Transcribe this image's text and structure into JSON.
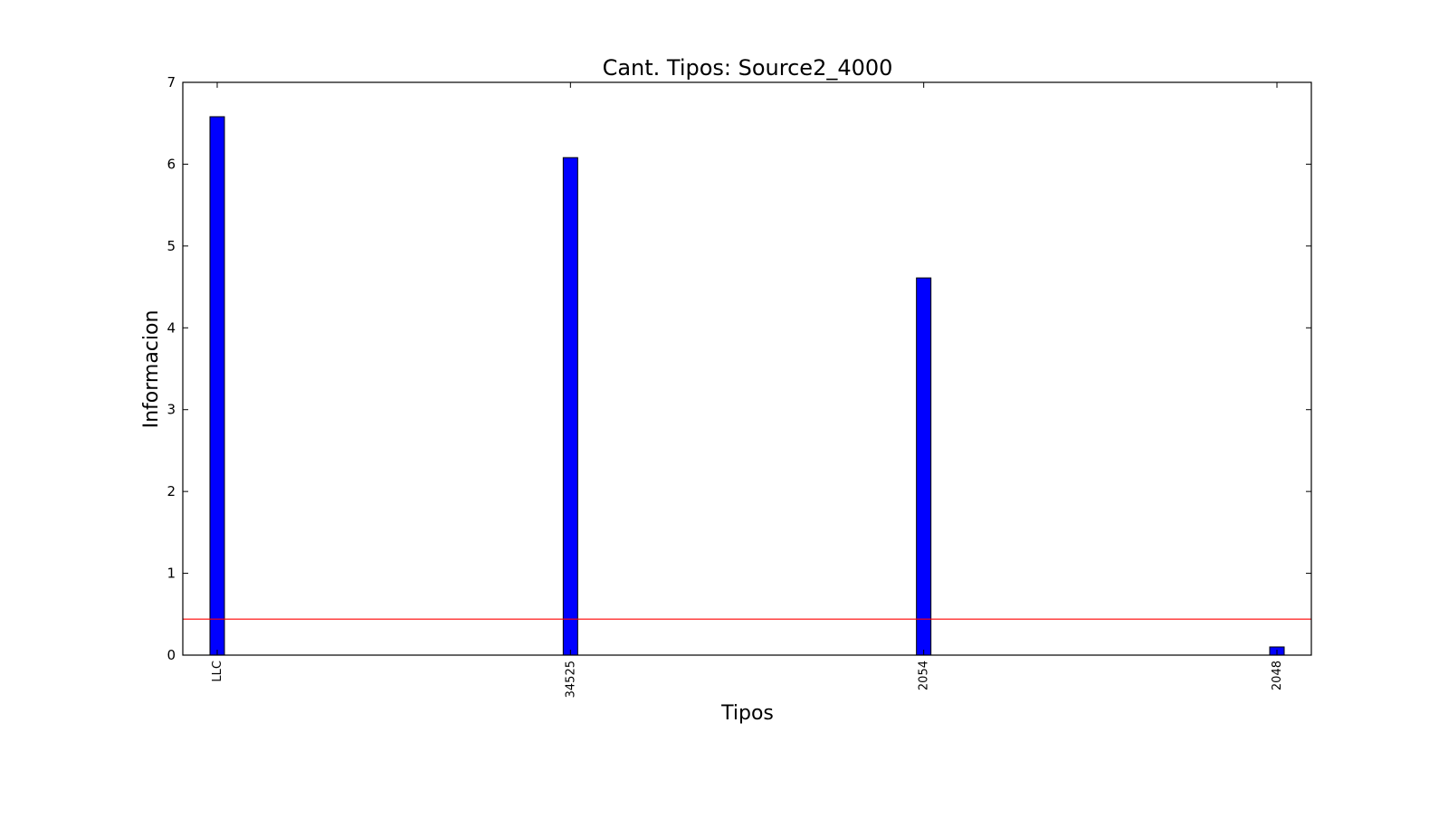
{
  "chart_data": {
    "type": "bar",
    "title": "Cant. Tipos: Source2_4000",
    "xlabel": "Tipos",
    "ylabel": "Informacion",
    "categories": [
      "LLC",
      "34525",
      "2054",
      "2048"
    ],
    "values": [
      6.58,
      6.08,
      4.61,
      0.1
    ],
    "ylim": [
      0,
      7
    ],
    "yticks": [
      "0",
      "1",
      "2",
      "3",
      "4",
      "5",
      "6",
      "7"
    ],
    "bar_color": "#0000ff",
    "reference_line": {
      "value": 0.44,
      "color": "#ff0000"
    },
    "grid": false,
    "legend": "none"
  }
}
